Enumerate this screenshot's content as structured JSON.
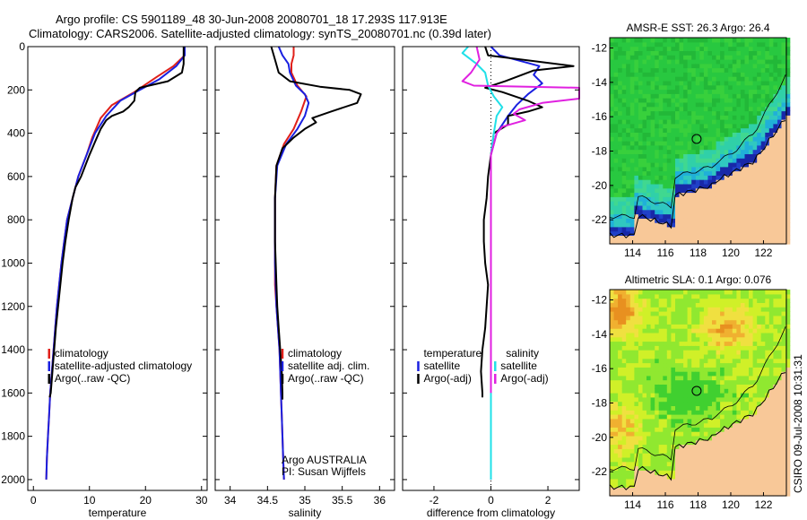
{
  "header": {
    "title_line1": "Argo profile: CS 5901189_48 30-Jun-2008 20080701_18 17.293S 117.913E",
    "title_line2": "Climatology: CARS2006. Satellite-adjusted climatology: synTS_20080701.nc (0.39d later)"
  },
  "side_stamp": "CSIRO 09-Jul-2008 10:31:31",
  "colors": {
    "red": "#e0201a",
    "blue": "#1a20e0",
    "black": "#000000",
    "cyan": "#20e0e8",
    "magenta": "#e020e0",
    "land": "#f8c898"
  },
  "chart_data": [
    {
      "type": "line",
      "name": "temperature",
      "xlabel": "temperature",
      "ylabel": "",
      "xlim": [
        -1,
        31
      ],
      "ylim": [
        0,
        2050
      ],
      "y_reversed": true,
      "xticks": [
        0,
        10,
        20,
        30
      ],
      "yticks": [
        0,
        200,
        400,
        600,
        800,
        1000,
        1200,
        1400,
        1600,
        1800,
        2000
      ],
      "legend": [
        "climatology",
        "satellite-adjusted climatology",
        "Argo(..raw -QC)"
      ],
      "series": [
        {
          "name": "climatology",
          "color": "red",
          "points": [
            [
              27,
              0
            ],
            [
              27,
              40
            ],
            [
              25,
              90
            ],
            [
              22,
              140
            ],
            [
              18,
              210
            ],
            [
              14,
              270
            ],
            [
              12,
              330
            ],
            [
              10.5,
              420
            ],
            [
              9.5,
              500
            ],
            [
              8,
              600
            ],
            [
              7,
              700
            ],
            [
              6,
              800
            ],
            [
              5.5,
              900
            ],
            [
              5,
              1000
            ],
            [
              4.6,
              1100
            ],
            [
              4.2,
              1200
            ],
            [
              3.9,
              1300
            ],
            [
              3.6,
              1400
            ],
            [
              3.3,
              1500
            ],
            [
              3,
              1600
            ],
            [
              2.8,
              1700
            ],
            [
              2.6,
              1800
            ],
            [
              2.4,
              1900
            ],
            [
              2.3,
              2000
            ]
          ]
        },
        {
          "name": "satellite-adjusted climatology",
          "color": "blue",
          "points": [
            [
              27,
              0
            ],
            [
              27,
              40
            ],
            [
              25.5,
              90
            ],
            [
              22.5,
              150
            ],
            [
              19,
              200
            ],
            [
              15.5,
              250
            ],
            [
              13,
              320
            ],
            [
              11,
              400
            ],
            [
              9.5,
              500
            ],
            [
              8,
              600
            ],
            [
              7,
              700
            ],
            [
              6,
              800
            ],
            [
              5.5,
              900
            ],
            [
              5,
              1000
            ],
            [
              4.6,
              1100
            ],
            [
              4.2,
              1200
            ],
            [
              3.9,
              1300
            ],
            [
              3.6,
              1400
            ],
            [
              3.3,
              1500
            ],
            [
              3,
              1600
            ],
            [
              2.8,
              1700
            ],
            [
              2.6,
              1800
            ],
            [
              2.4,
              1900
            ],
            [
              2.3,
              2000
            ]
          ]
        },
        {
          "name": "Argo(..raw -QC)",
          "color": "black",
          "points": [
            [
              26.8,
              0
            ],
            [
              26.8,
              80
            ],
            [
              26.5,
              120
            ],
            [
              24,
              160
            ],
            [
              19,
              190
            ],
            [
              18.2,
              210
            ],
            [
              18,
              250
            ],
            [
              17,
              280
            ],
            [
              16,
              300
            ],
            [
              14,
              320
            ],
            [
              13,
              340
            ],
            [
              12,
              380
            ],
            [
              11,
              440
            ],
            [
              10,
              500
            ],
            [
              8.5,
              600
            ],
            [
              7.5,
              650
            ],
            [
              7,
              700
            ],
            [
              6.3,
              800
            ],
            [
              5.7,
              900
            ],
            [
              5.2,
              1000
            ],
            [
              4.8,
              1100
            ],
            [
              4.4,
              1200
            ],
            [
              4,
              1300
            ],
            [
              3.7,
              1400
            ],
            [
              3.4,
              1500
            ],
            [
              3.1,
              1600
            ],
            [
              2.9,
              1620
            ]
          ]
        }
      ]
    },
    {
      "type": "line",
      "name": "salinity",
      "xlabel": "salinity",
      "xlim": [
        33.8,
        36.2
      ],
      "ylim": [
        0,
        2050
      ],
      "y_reversed": true,
      "xticks": [
        34,
        34.5,
        35,
        35.5,
        36
      ],
      "legend": [
        "climatology",
        "satellite adj. clim.",
        "Argo(..raw -QC)"
      ],
      "annotations": [
        "Argo AUSTRALIA",
        "PI: Susan Wijffels"
      ],
      "series": [
        {
          "name": "climatology",
          "color": "red",
          "points": [
            [
              34.85,
              0
            ],
            [
              34.85,
              40
            ],
            [
              34.82,
              80
            ],
            [
              34.82,
              120
            ],
            [
              34.9,
              180
            ],
            [
              35.02,
              230
            ],
            [
              34.95,
              300
            ],
            [
              34.85,
              380
            ],
            [
              34.72,
              450
            ],
            [
              34.62,
              550
            ],
            [
              34.6,
              700
            ],
            [
              34.6,
              800
            ],
            [
              34.6,
              900
            ],
            [
              34.6,
              1000
            ],
            [
              34.6,
              1100
            ],
            [
              34.62,
              1200
            ],
            [
              34.64,
              1300
            ],
            [
              34.66,
              1400
            ],
            [
              34.67,
              1500
            ],
            [
              34.68,
              1600
            ],
            [
              34.69,
              1700
            ],
            [
              34.7,
              1800
            ],
            [
              34.71,
              1900
            ],
            [
              34.72,
              2000
            ]
          ]
        },
        {
          "name": "satellite adj. clim.",
          "color": "blue",
          "points": [
            [
              34.65,
              0
            ],
            [
              34.7,
              40
            ],
            [
              34.78,
              80
            ],
            [
              34.8,
              120
            ],
            [
              34.88,
              180
            ],
            [
              35,
              220
            ],
            [
              35.05,
              260
            ],
            [
              35,
              320
            ],
            [
              34.9,
              380
            ],
            [
              34.75,
              450
            ],
            [
              34.63,
              550
            ],
            [
              34.6,
              700
            ],
            [
              34.6,
              800
            ],
            [
              34.6,
              900
            ],
            [
              34.6,
              1000
            ],
            [
              34.61,
              1100
            ],
            [
              34.62,
              1200
            ],
            [
              34.64,
              1300
            ],
            [
              34.66,
              1400
            ],
            [
              34.67,
              1500
            ],
            [
              34.68,
              1600
            ],
            [
              34.69,
              1700
            ],
            [
              34.7,
              1800
            ],
            [
              34.71,
              1900
            ],
            [
              34.72,
              2000
            ]
          ]
        },
        {
          "name": "Argo(..raw -QC)",
          "color": "black",
          "points": [
            [
              34.55,
              0
            ],
            [
              34.6,
              60
            ],
            [
              34.65,
              120
            ],
            [
              34.8,
              160
            ],
            [
              35.2,
              185
            ],
            [
              35.6,
              200
            ],
            [
              35.75,
              220
            ],
            [
              35.7,
              260
            ],
            [
              35.35,
              300
            ],
            [
              35.1,
              330
            ],
            [
              35.15,
              350
            ],
            [
              35.0,
              380
            ],
            [
              34.85,
              420
            ],
            [
              34.7,
              470
            ],
            [
              34.62,
              550
            ],
            [
              34.6,
              700
            ],
            [
              34.6,
              800
            ],
            [
              34.6,
              900
            ],
            [
              34.61,
              1000
            ],
            [
              34.62,
              1100
            ],
            [
              34.63,
              1200
            ],
            [
              34.65,
              1300
            ],
            [
              34.67,
              1400
            ],
            [
              34.69,
              1500
            ],
            [
              34.7,
              1600
            ],
            [
              34.7,
              1630
            ]
          ]
        }
      ]
    },
    {
      "type": "line",
      "name": "difference from climatology",
      "xlabel": "difference from climatology",
      "xlim": [
        -3.1,
        3.1
      ],
      "ylim": [
        0,
        2050
      ],
      "y_reversed": true,
      "xticks": [
        -2,
        0,
        2
      ],
      "zero_line": true,
      "legend_left": [
        "temperature",
        "satellite",
        "Argo(-adj)"
      ],
      "legend_right": [
        "salinity",
        "satellite",
        "Argo(-adj)"
      ],
      "series": [
        {
          "name": "temperature satellite",
          "color": "blue",
          "points": [
            [
              0,
              0
            ],
            [
              0.3,
              40
            ],
            [
              1.7,
              90
            ],
            [
              1.5,
              130
            ],
            [
              1.8,
              170
            ],
            [
              1.3,
              220
            ],
            [
              0.9,
              270
            ],
            [
              0.6,
              320
            ],
            [
              0.2,
              400
            ],
            [
              0,
              500
            ],
            [
              0,
              2000
            ]
          ]
        },
        {
          "name": "temperature Argo(-adj)",
          "color": "black",
          "points": [
            [
              -0.2,
              0
            ],
            [
              -0.1,
              40
            ],
            [
              2.9,
              90
            ],
            [
              1.5,
              110
            ],
            [
              0.5,
              160
            ],
            [
              -0.2,
              190
            ],
            [
              0.4,
              210
            ],
            [
              1.3,
              250
            ],
            [
              1.8,
              280
            ],
            [
              1.3,
              300
            ],
            [
              0.6,
              320
            ],
            [
              0.6,
              360
            ],
            [
              0.1,
              400
            ],
            [
              0,
              500
            ],
            [
              -0.1,
              600
            ],
            [
              -0.15,
              700
            ],
            [
              -0.25,
              800
            ],
            [
              -0.25,
              900
            ],
            [
              -0.2,
              1000
            ],
            [
              -0.1,
              1100
            ],
            [
              -0.15,
              1200
            ],
            [
              -0.2,
              1300
            ],
            [
              -0.3,
              1400
            ],
            [
              -0.35,
              1500
            ],
            [
              -0.3,
              1600
            ],
            [
              -0.3,
              1620
            ]
          ]
        },
        {
          "name": "salinity satellite",
          "color": "cyan",
          "points": [
            [
              -0.8,
              0
            ],
            [
              -1.0,
              30
            ],
            [
              -0.5,
              80
            ],
            [
              -0.2,
              120
            ],
            [
              -0.1,
              180
            ],
            [
              0.1,
              230
            ],
            [
              0.4,
              280
            ],
            [
              0.2,
              320
            ],
            [
              0.1,
              400
            ],
            [
              0,
              500
            ],
            [
              0,
              2000
            ]
          ]
        },
        {
          "name": "salinity Argo(-adj)",
          "color": "magenta",
          "points": [
            [
              -0.5,
              0
            ],
            [
              -0.4,
              60
            ],
            [
              -0.7,
              120
            ],
            [
              -1.0,
              160
            ],
            [
              -0.6,
              180
            ],
            [
              3.1,
              190
            ],
            [
              3.1,
              240
            ],
            [
              1.8,
              260
            ],
            [
              1.0,
              290
            ],
            [
              0.8,
              310
            ],
            [
              1.2,
              340
            ],
            [
              0.4,
              370
            ],
            [
              0.2,
              400
            ],
            [
              0,
              500
            ],
            [
              0,
              1600
            ]
          ]
        }
      ]
    },
    {
      "type": "heatmap",
      "name": "sst-map",
      "title": "AMSR-E SST: 26.3 Argo: 26.4",
      "xticks": [
        114,
        116,
        118,
        120,
        122
      ],
      "yticks": [
        -12,
        -14,
        -16,
        -18,
        -20,
        -22
      ],
      "xlim": [
        112.6,
        123.4
      ],
      "ylim": [
        -23.4,
        -11.4
      ],
      "float_marker": [
        117.913,
        -17.293
      ]
    },
    {
      "type": "heatmap",
      "name": "sla-map",
      "title": "Altimetric SLA: 0.1 Argo: 0.076",
      "xticks": [
        114,
        116,
        118,
        120,
        122
      ],
      "yticks": [
        -12,
        -14,
        -16,
        -18,
        -20,
        -22
      ],
      "xlim": [
        112.6,
        123.4
      ],
      "ylim": [
        -23.4,
        -11.4
      ],
      "float_marker": [
        117.913,
        -17.293
      ]
    }
  ]
}
